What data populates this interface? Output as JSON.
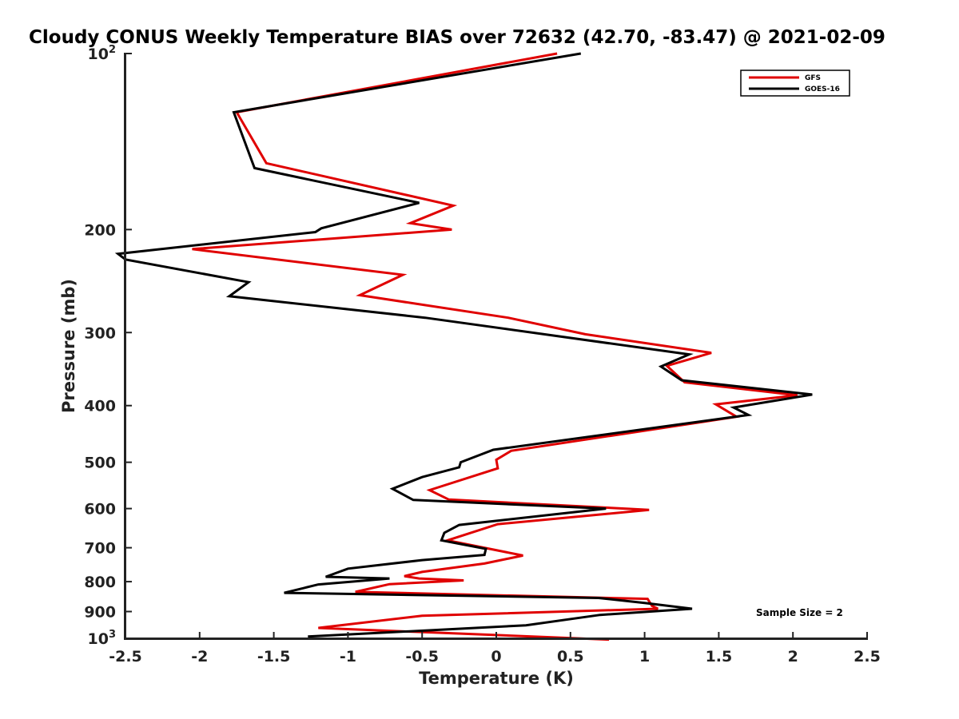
{
  "chart_data": {
    "type": "line",
    "title": "Cloudy CONUS Weekly Temperature BIAS over 72632 (42.70, -83.47) @ 2021-02-09",
    "xlabel": "Temperature (K)",
    "ylabel": "Pressure (mb)",
    "xlim": [
      -2.5,
      2.5
    ],
    "ylim": [
      100,
      1000
    ],
    "y_scale": "log",
    "y_reversed": true,
    "x_ticks": [
      -2.5,
      -2,
      -1.5,
      -1,
      -0.5,
      0,
      0.5,
      1,
      1.5,
      2,
      2.5
    ],
    "x_tick_labels": [
      "-2.5",
      "-2",
      "-1.5",
      "-1",
      "-0.5",
      "0",
      "0.5",
      "1",
      "1.5",
      "2",
      "2.5"
    ],
    "y_ticks": [
      {
        "value": 100,
        "base": "10",
        "exp": "2"
      },
      {
        "value": 200,
        "label": "200"
      },
      {
        "value": 300,
        "label": "300"
      },
      {
        "value": 400,
        "label": "400"
      },
      {
        "value": 500,
        "label": "500"
      },
      {
        "value": 600,
        "label": "600"
      },
      {
        "value": 700,
        "label": "700"
      },
      {
        "value": 800,
        "label": "800"
      },
      {
        "value": 900,
        "label": "900"
      },
      {
        "value": 1000,
        "base": "10",
        "exp": "3"
      }
    ],
    "grid": false,
    "legend_position": "top-right",
    "annotation": "Sample Size = 2",
    "series": [
      {
        "name": "GFS",
        "color": "#e00000",
        "points": [
          [
            0.41,
            100
          ],
          [
            -1.75,
            126
          ],
          [
            -1.55,
            154
          ],
          [
            -0.29,
            182
          ],
          [
            -0.58,
            195
          ],
          [
            -0.3,
            200
          ],
          [
            -2.05,
            216
          ],
          [
            -0.63,
            239
          ],
          [
            -0.92,
            259
          ],
          [
            0.08,
            283
          ],
          [
            0.6,
            302
          ],
          [
            1.45,
            325
          ],
          [
            1.15,
            342
          ],
          [
            1.27,
            365
          ],
          [
            2.03,
            384
          ],
          [
            1.48,
            398
          ],
          [
            1.62,
            418
          ],
          [
            0.1,
            478
          ],
          [
            0,
            495
          ],
          [
            0.01,
            512
          ],
          [
            -0.45,
            558
          ],
          [
            -0.32,
            579
          ],
          [
            1.03,
            603
          ],
          [
            0.01,
            638
          ],
          [
            -0.33,
            680
          ],
          [
            0.18,
            722
          ],
          [
            -0.08,
            745
          ],
          [
            -0.5,
            770
          ],
          [
            -0.62,
            783
          ],
          [
            -0.52,
            790
          ],
          [
            -0.22,
            796
          ],
          [
            -0.72,
            808
          ],
          [
            -0.95,
            833
          ],
          [
            1.02,
            856
          ],
          [
            1.05,
            880
          ],
          [
            1.09,
            890
          ],
          [
            -0.5,
            915
          ],
          [
            -1.2,
            960
          ],
          [
            0.76,
            1005
          ]
        ]
      },
      {
        "name": "GOES-16",
        "color": "#000000",
        "points": [
          [
            0.57,
            100
          ],
          [
            -1.77,
            126
          ],
          [
            -1.63,
            157
          ],
          [
            -0.52,
            180
          ],
          [
            -1.18,
            199
          ],
          [
            -1.22,
            202
          ],
          [
            -2.55,
            220
          ],
          [
            -2.5,
            225
          ],
          [
            -1.67,
            246
          ],
          [
            -1.8,
            260
          ],
          [
            -0.48,
            283
          ],
          [
            1.3,
            327
          ],
          [
            1.11,
            343
          ],
          [
            1.25,
            362
          ],
          [
            2.13,
            383
          ],
          [
            1.6,
            403
          ],
          [
            1.7,
            415
          ],
          [
            -0.02,
            476
          ],
          [
            -0.24,
            500
          ],
          [
            -0.25,
            510
          ],
          [
            -0.5,
            530
          ],
          [
            -0.7,
            555
          ],
          [
            -0.56,
            580
          ],
          [
            0.74,
            600
          ],
          [
            -0.25,
            640
          ],
          [
            -0.35,
            660
          ],
          [
            -0.37,
            680
          ],
          [
            -0.07,
            703
          ],
          [
            -0.08,
            720
          ],
          [
            -0.5,
            735
          ],
          [
            -1.0,
            760
          ],
          [
            -1.15,
            785
          ],
          [
            -0.72,
            790
          ],
          [
            -1.2,
            809
          ],
          [
            -1.43,
            836
          ],
          [
            0.69,
            853
          ],
          [
            1.0,
            870
          ],
          [
            1.32,
            890
          ],
          [
            0.7,
            912
          ],
          [
            0.2,
            950
          ],
          [
            -1.27,
            993
          ]
        ]
      }
    ]
  }
}
